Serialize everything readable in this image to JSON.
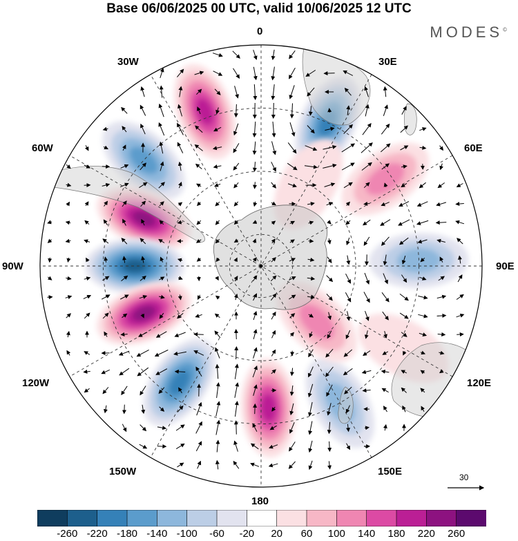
{
  "title": "Base 06/06/2025 00 UTC, valid 10/06/2025 12 UTC",
  "brand": "MODES",
  "brand_mark": "©",
  "longitude_labels": {
    "lon_0": "0",
    "lon_30e": "30E",
    "lon_60e": "60E",
    "lon_90e": "90E",
    "lon_120e": "120E",
    "lon_150e": "150E",
    "lon_180": "180",
    "lon_150w": "150W",
    "lon_120w": "120W",
    "lon_90w": "90W",
    "lon_60w": "60W",
    "lon_30w": "30W"
  },
  "reference_vector": "30",
  "colorbar": {
    "ticks": [
      "-260",
      "-220",
      "-180",
      "-140",
      "-100",
      "-60",
      "-20",
      "20",
      "60",
      "100",
      "140",
      "180",
      "220",
      "260"
    ],
    "colors": [
      "#0f3d5e",
      "#1d5f8c",
      "#3581b8",
      "#5b9ccc",
      "#8db7dc",
      "#bccee6",
      "#e2e3ef",
      "#ffffff",
      "#fbe0e3",
      "#f7b7c6",
      "#ef86b2",
      "#dc4aa4",
      "#bb1f95",
      "#8d1280",
      "#5c0a6e"
    ]
  },
  "anomaly_centers": [
    {
      "lat": -38,
      "lon": -20,
      "value": 200
    },
    {
      "lat": -40,
      "lon": 25,
      "value": -220
    },
    {
      "lat": -42,
      "lon": 55,
      "value": 120
    },
    {
      "lat": -40,
      "lon": -48,
      "value": -160
    },
    {
      "lat": -50,
      "lon": -68,
      "value": 240
    },
    {
      "lat": -50,
      "lon": -90,
      "value": -260
    },
    {
      "lat": -50,
      "lon": -112,
      "value": 240
    },
    {
      "lat": -45,
      "lon": -145,
      "value": -200
    },
    {
      "lat": -45,
      "lon": 177,
      "value": 200
    },
    {
      "lat": -40,
      "lon": 150,
      "value": -120
    },
    {
      "lat": -65,
      "lon": 135,
      "value": 120
    },
    {
      "lat": -40,
      "lon": 88,
      "value": -140
    },
    {
      "lat": -60,
      "lon": 30,
      "value": 50
    },
    {
      "lat": -38,
      "lon": 120,
      "value": 40
    }
  ]
}
